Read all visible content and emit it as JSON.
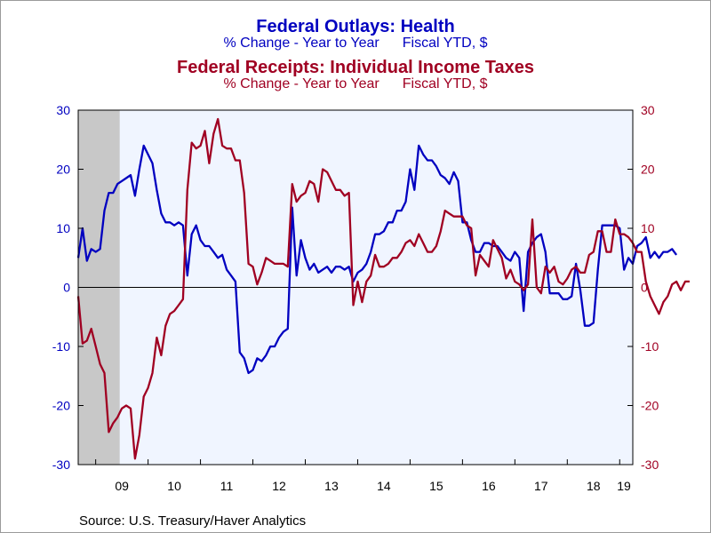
{
  "titles": {
    "title1": "Federal Outlays: Health",
    "subtitle1_measure": "% Change - Year to Year",
    "subtitle1_basis": "Fiscal YTD, $",
    "title2": "Federal Receipts: Individual Income Taxes",
    "subtitle2_measure": "% Change - Year to Year",
    "subtitle2_basis": "Fiscal YTD, $"
  },
  "source": "Source:  U.S. Treasury/Haver Analytics",
  "chart_data": {
    "type": "line",
    "x_unit": "months (monthly observations, Sep 2008 – Mar 2019)",
    "x_start": "2008-09",
    "x_end": "2019-03",
    "x_tick_labels": [
      "09",
      "10",
      "11",
      "12",
      "13",
      "14",
      "15",
      "16",
      "17",
      "18",
      "19"
    ],
    "ylim": [
      -30,
      30
    ],
    "y_ticks": [
      -30,
      -20,
      -10,
      0,
      10,
      20,
      30
    ],
    "y_right_ticks": [
      -30,
      -20,
      -10,
      0,
      10,
      20,
      30
    ],
    "recession_shading": {
      "from": "2008-09",
      "to": "2009-06",
      "color": "#c8c8c8"
    },
    "plot_background": "#f0f5ff",
    "zero_line": true,
    "series": [
      {
        "color": "#0000c0",
        "axis": "left",
        "values": [
          5,
          10,
          4.5,
          6.5,
          6,
          6.5,
          13,
          16,
          16,
          17.5,
          18,
          18.5,
          19,
          15.5,
          20,
          24,
          22.5,
          21,
          16.5,
          12.5,
          11,
          11,
          10.5,
          11,
          10.5,
          2,
          9,
          10.5,
          8,
          7,
          7,
          6,
          5,
          5.5,
          3,
          2,
          1,
          -11,
          -12,
          -14.5,
          -14,
          -12,
          -12.5,
          -11.5,
          -10,
          -10,
          -8.5,
          -7.5,
          -7,
          13.5,
          2,
          8,
          5,
          3,
          4,
          2.5,
          3,
          3.5,
          2.5,
          3.5,
          3.5,
          3,
          3.5,
          1,
          2.5,
          3,
          4,
          6,
          9,
          9,
          9.5,
          11,
          11,
          13,
          13,
          14.5,
          20,
          16.5,
          24,
          22.5,
          21.5,
          21.5,
          20.5,
          19,
          18.5,
          17.5,
          19.5,
          18,
          11,
          11,
          8,
          6,
          6,
          7.5,
          7.5,
          7,
          7,
          6,
          5,
          4.5,
          6,
          5,
          -4,
          6,
          7.5,
          8.5,
          9,
          6,
          -1,
          -1,
          -1,
          -2,
          -2,
          -1.5,
          4,
          -0.5,
          -6.5,
          -6.5,
          -6,
          3,
          10.5,
          10.5,
          10.5,
          10.5,
          10,
          3,
          5,
          4,
          7,
          7.5,
          8.5,
          5,
          6,
          5,
          6,
          6,
          6.5,
          5.5
        ]
      },
      {
        "color": "#a00022",
        "axis": "right",
        "values": [
          -1.5,
          -9.5,
          -9,
          -7,
          -10,
          -13,
          -14.5,
          -24.5,
          -23,
          -22,
          -20.5,
          -20,
          -20.5,
          -29,
          -25,
          -18.5,
          -17,
          -14.5,
          -8.5,
          -11.5,
          -6.5,
          -4.5,
          -4,
          -3,
          -2,
          16.5,
          24.5,
          23.5,
          24,
          26.5,
          21,
          26,
          28.5,
          24,
          23.5,
          23.5,
          21.5,
          21.5,
          16,
          4,
          3.5,
          0.5,
          2.5,
          5,
          4.5,
          4,
          4,
          4,
          3.5,
          17.5,
          14.5,
          15.5,
          16,
          18,
          17.5,
          14.5,
          20,
          19.5,
          18,
          16.5,
          16.5,
          15.5,
          16,
          -3,
          1,
          -2.5,
          1,
          2,
          5.5,
          3.5,
          3.5,
          4,
          5,
          5,
          6,
          7.5,
          8,
          7,
          9,
          7.5,
          6,
          6,
          7,
          9.5,
          13,
          12.5,
          12,
          12,
          12,
          10.5,
          10,
          2,
          5.5,
          4.5,
          3.5,
          8,
          6.5,
          5,
          1.5,
          3,
          1,
          0.5,
          -0.5,
          0.5,
          11.5,
          0,
          -1,
          3.5,
          2.5,
          3.5,
          1,
          0.5,
          1.5,
          3,
          3.5,
          2.5,
          2.5,
          5.5,
          6,
          9.5,
          9.5,
          6,
          6,
          11.5,
          9,
          9,
          8.5,
          7.5,
          6,
          6,
          1,
          -1.5,
          -3,
          -4.5,
          -2.5,
          -1.5,
          0.5,
          1,
          -0.5,
          1,
          1
        ]
      }
    ]
  }
}
